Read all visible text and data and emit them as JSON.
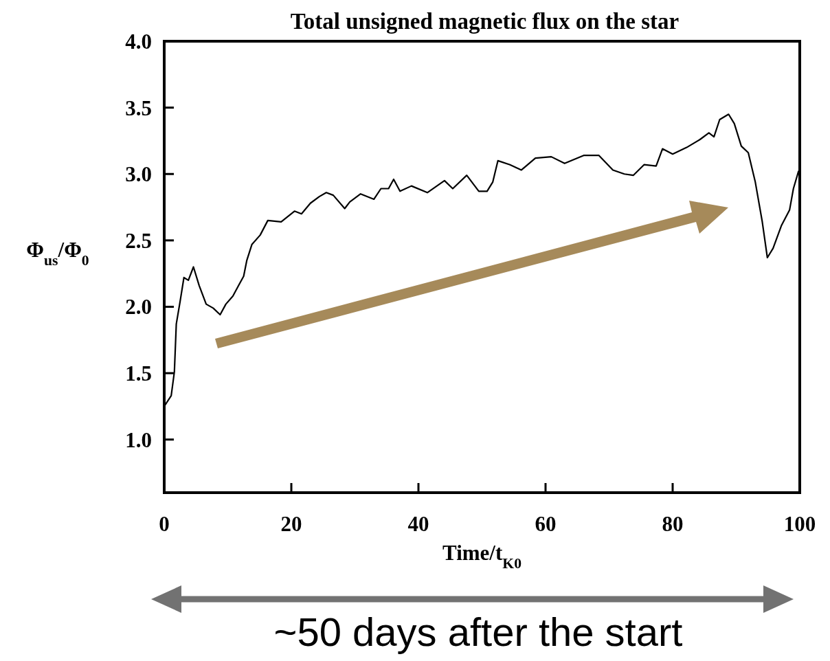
{
  "chart_data": {
    "type": "line",
    "title": "Total unsigned magnetic flux on the star",
    "xlabel": "Time/t$_{K0}$",
    "ylabel": "Φ$_{us}$/Φ$_{0}$",
    "annotations": [
      "~50 days after the start"
    ],
    "xlim": [
      0,
      100
    ],
    "ylim": [
      0.6,
      4.0
    ],
    "xticks": [
      0,
      20,
      40,
      60,
      80,
      100
    ],
    "yticks": [
      {
        "value": 1.0,
        "label": "1.0"
      },
      {
        "value": 1.5,
        "label": "1.5"
      },
      {
        "value": 2.0,
        "label": "2.0"
      },
      {
        "value": 2.5,
        "label": "2.5"
      },
      {
        "value": 3.0,
        "label": "3.0"
      },
      {
        "value": 3.5,
        "label": "3.5"
      },
      {
        "value": 4.0,
        "label": "4.0"
      }
    ],
    "grid": false,
    "marker": "none",
    "line_style": "solid",
    "x": [
      0,
      1.1,
      1.6,
      1.9,
      2.5,
      3.1,
      3.8,
      4.6,
      5.5,
      6.6,
      7.7,
      8.8,
      9.7,
      10.8,
      11.7,
      12.5,
      13.0,
      13.8,
      15.1,
      16.3,
      18.4,
      20.5,
      21.6,
      23.0,
      24.4,
      25.5,
      26.6,
      28.4,
      29.2,
      30.9,
      33.0,
      34.1,
      35.3,
      36.1,
      37.1,
      38.9,
      41.4,
      44.1,
      45.4,
      47.6,
      49.5,
      50.8,
      51.7,
      52.5,
      54.4,
      56.2,
      58.4,
      60.9,
      63.0,
      66.0,
      68.4,
      70.6,
      72.4,
      73.8,
      75.5,
      77.4,
      78.4,
      80.0,
      82.2,
      84.3,
      85.7,
      86.5,
      87.4,
      88.8,
      89.7,
      90.8,
      91.9,
      93.0,
      94.1,
      94.9,
      95.8,
      97.1,
      98.4,
      99.0,
      99.8
    ],
    "series": [
      {
        "color": "#000000",
        "values": [
          1.25,
          1.33,
          1.51,
          1.87,
          2.04,
          2.22,
          2.2,
          2.3,
          2.16,
          2.02,
          1.99,
          1.94,
          2.02,
          2.08,
          2.16,
          2.23,
          2.35,
          2.47,
          2.54,
          2.65,
          2.64,
          2.72,
          2.7,
          2.78,
          2.83,
          2.86,
          2.84,
          2.74,
          2.79,
          2.85,
          2.81,
          2.89,
          2.89,
          2.96,
          2.87,
          2.91,
          2.86,
          2.95,
          2.89,
          2.99,
          2.87,
          2.87,
          2.94,
          3.1,
          3.07,
          3.03,
          3.12,
          3.13,
          3.08,
          3.14,
          3.14,
          3.03,
          3.0,
          2.99,
          3.07,
          3.06,
          3.19,
          3.15,
          3.2,
          3.26,
          3.31,
          3.28,
          3.41,
          3.45,
          3.38,
          3.21,
          3.16,
          2.94,
          2.64,
          2.37,
          2.44,
          2.61,
          2.73,
          2.89,
          3.02
        ]
      }
    ]
  }
}
